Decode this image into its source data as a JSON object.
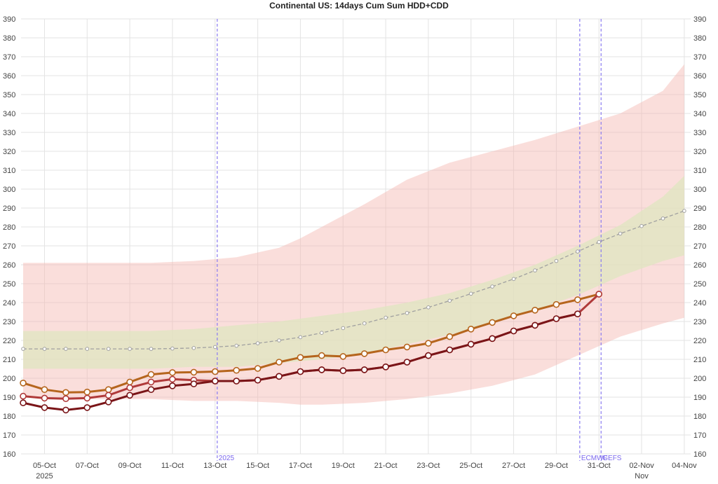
{
  "chart_data": {
    "type": "line",
    "title": "Continental US: 14days Cum Sum HDD+CDD",
    "ylim": [
      160,
      390
    ],
    "y_ticks": [
      160,
      170,
      180,
      190,
      200,
      210,
      220,
      230,
      240,
      250,
      260,
      270,
      280,
      290,
      300,
      310,
      320,
      330,
      340,
      350,
      360,
      370,
      380,
      390
    ],
    "xlim": [
      3.9,
      35.3
    ],
    "x_ticks": [
      {
        "x": 5,
        "label": "05-Oct",
        "sub": "2025"
      },
      {
        "x": 7,
        "label": "07-Oct",
        "sub": ""
      },
      {
        "x": 9,
        "label": "09-Oct",
        "sub": ""
      },
      {
        "x": 11,
        "label": "11-Oct",
        "sub": ""
      },
      {
        "x": 13,
        "label": "13-Oct",
        "sub": ""
      },
      {
        "x": 15,
        "label": "15-Oct",
        "sub": ""
      },
      {
        "x": 17,
        "label": "17-Oct",
        "sub": ""
      },
      {
        "x": 19,
        "label": "19-Oct",
        "sub": ""
      },
      {
        "x": 21,
        "label": "21-Oct",
        "sub": ""
      },
      {
        "x": 23,
        "label": "23-Oct",
        "sub": ""
      },
      {
        "x": 25,
        "label": "25-Oct",
        "sub": ""
      },
      {
        "x": 27,
        "label": "27-Oct",
        "sub": ""
      },
      {
        "x": 29,
        "label": "29-Oct",
        "sub": ""
      },
      {
        "x": 31,
        "label": "31-Oct",
        "sub": ""
      },
      {
        "x": 33,
        "label": "02-Nov",
        "sub": "Nov"
      },
      {
        "x": 35,
        "label": "04-Nov",
        "sub": ""
      }
    ],
    "vertical_lines": [
      {
        "x": 13.1,
        "label": "2025"
      },
      {
        "x": 30.1,
        "label": "ECMWF"
      },
      {
        "x": 31.1,
        "label": "GEFS"
      }
    ],
    "grid": true,
    "bands": [
      {
        "color": "#f4b6b0",
        "x": [
          4,
          6,
          8,
          10,
          12,
          14,
          16,
          17,
          18,
          20,
          22,
          24,
          26,
          28,
          30,
          32,
          34,
          35
        ],
        "upper": [
          261,
          261,
          261,
          261,
          262,
          264,
          269,
          274,
          280,
          292,
          305,
          314,
          320,
          326,
          333,
          340,
          352,
          366
        ],
        "lower": [
          190,
          189,
          189,
          189,
          188,
          188,
          187,
          186,
          186,
          187,
          189,
          192,
          196,
          202,
          212,
          222,
          229,
          232
        ]
      },
      {
        "color": "#dfe6c0",
        "x": [
          4,
          6,
          8,
          10,
          12,
          14,
          16,
          18,
          20,
          22,
          24,
          26,
          28,
          30,
          32,
          34,
          35
        ],
        "upper": [
          225,
          225,
          225,
          225,
          226,
          228,
          230,
          233,
          236,
          240,
          245,
          252,
          260,
          270,
          281,
          296,
          307
        ],
        "lower": [
          205,
          205,
          205,
          205,
          206,
          206,
          208,
          210,
          213,
          218,
          223,
          229,
          236,
          244,
          254,
          262,
          265
        ]
      }
    ],
    "series": [
      {
        "color": "#a0a0a0",
        "dashed": true,
        "marker": "small",
        "x": [
          4,
          5,
          6,
          7,
          8,
          9,
          10,
          11,
          12,
          13,
          14,
          15,
          16,
          17,
          18,
          19,
          20,
          21,
          22,
          23,
          24,
          25,
          26,
          27,
          28,
          29,
          30,
          31,
          32,
          33,
          34,
          35
        ],
        "values": [
          215.5,
          215.5,
          215.5,
          215.5,
          215.5,
          215.5,
          215.5,
          215.7,
          216,
          216.5,
          217.2,
          218.5,
          220,
          221.7,
          224,
          226.5,
          229,
          232,
          234.5,
          237.5,
          241,
          244.7,
          248.5,
          252.5,
          257,
          262,
          267,
          272,
          276.5,
          280.5,
          284.5,
          288.5
        ]
      },
      {
        "color": "#b5651d",
        "dashed": false,
        "marker": "large",
        "x": [
          4,
          5,
          6,
          7,
          8,
          9,
          10,
          11,
          12,
          13,
          14,
          15,
          16,
          17,
          18,
          19,
          20,
          21,
          22,
          23,
          24,
          25,
          26,
          27,
          28,
          29,
          30,
          31
        ],
        "values": [
          197.5,
          194,
          192.5,
          192.7,
          194,
          198,
          202,
          203,
          203.2,
          203.5,
          204.2,
          205.2,
          208.5,
          211,
          212,
          211.5,
          213,
          215,
          216.5,
          218.5,
          222,
          226,
          229.5,
          233,
          236,
          239,
          241.5,
          244.5
        ]
      },
      {
        "color": "#b03a3a",
        "dashed": false,
        "marker": "large",
        "x": [
          4,
          5,
          6,
          7,
          8,
          9,
          10,
          11,
          12,
          13,
          14,
          15,
          16,
          17,
          18,
          19,
          20,
          21,
          22,
          23,
          24,
          25,
          26,
          27,
          28,
          29,
          30,
          31
        ],
        "values": [
          190.5,
          189.5,
          189.2,
          189.5,
          191,
          195,
          198,
          199.5,
          199,
          198.5,
          198.5,
          199,
          201,
          203.5,
          204.5,
          204,
          204.5,
          206,
          208.5,
          212,
          215,
          218,
          221,
          225,
          228,
          231.5,
          234,
          244.5
        ]
      },
      {
        "color": "#7a1518",
        "dashed": false,
        "marker": "large",
        "x": [
          4,
          5,
          6,
          7,
          8,
          9,
          10,
          11,
          12,
          13,
          14,
          15,
          16,
          17,
          18,
          19,
          20,
          21,
          22,
          23,
          24,
          25,
          26,
          27,
          28,
          29,
          30
        ],
        "values": [
          187,
          184.5,
          183.2,
          184.5,
          187.5,
          191,
          194,
          196,
          197,
          198.5,
          198.5,
          199,
          201,
          203.5,
          204.5,
          204,
          204.5,
          206,
          208.5,
          212,
          215,
          218,
          221,
          225,
          228,
          231.5,
          234
        ]
      }
    ]
  }
}
